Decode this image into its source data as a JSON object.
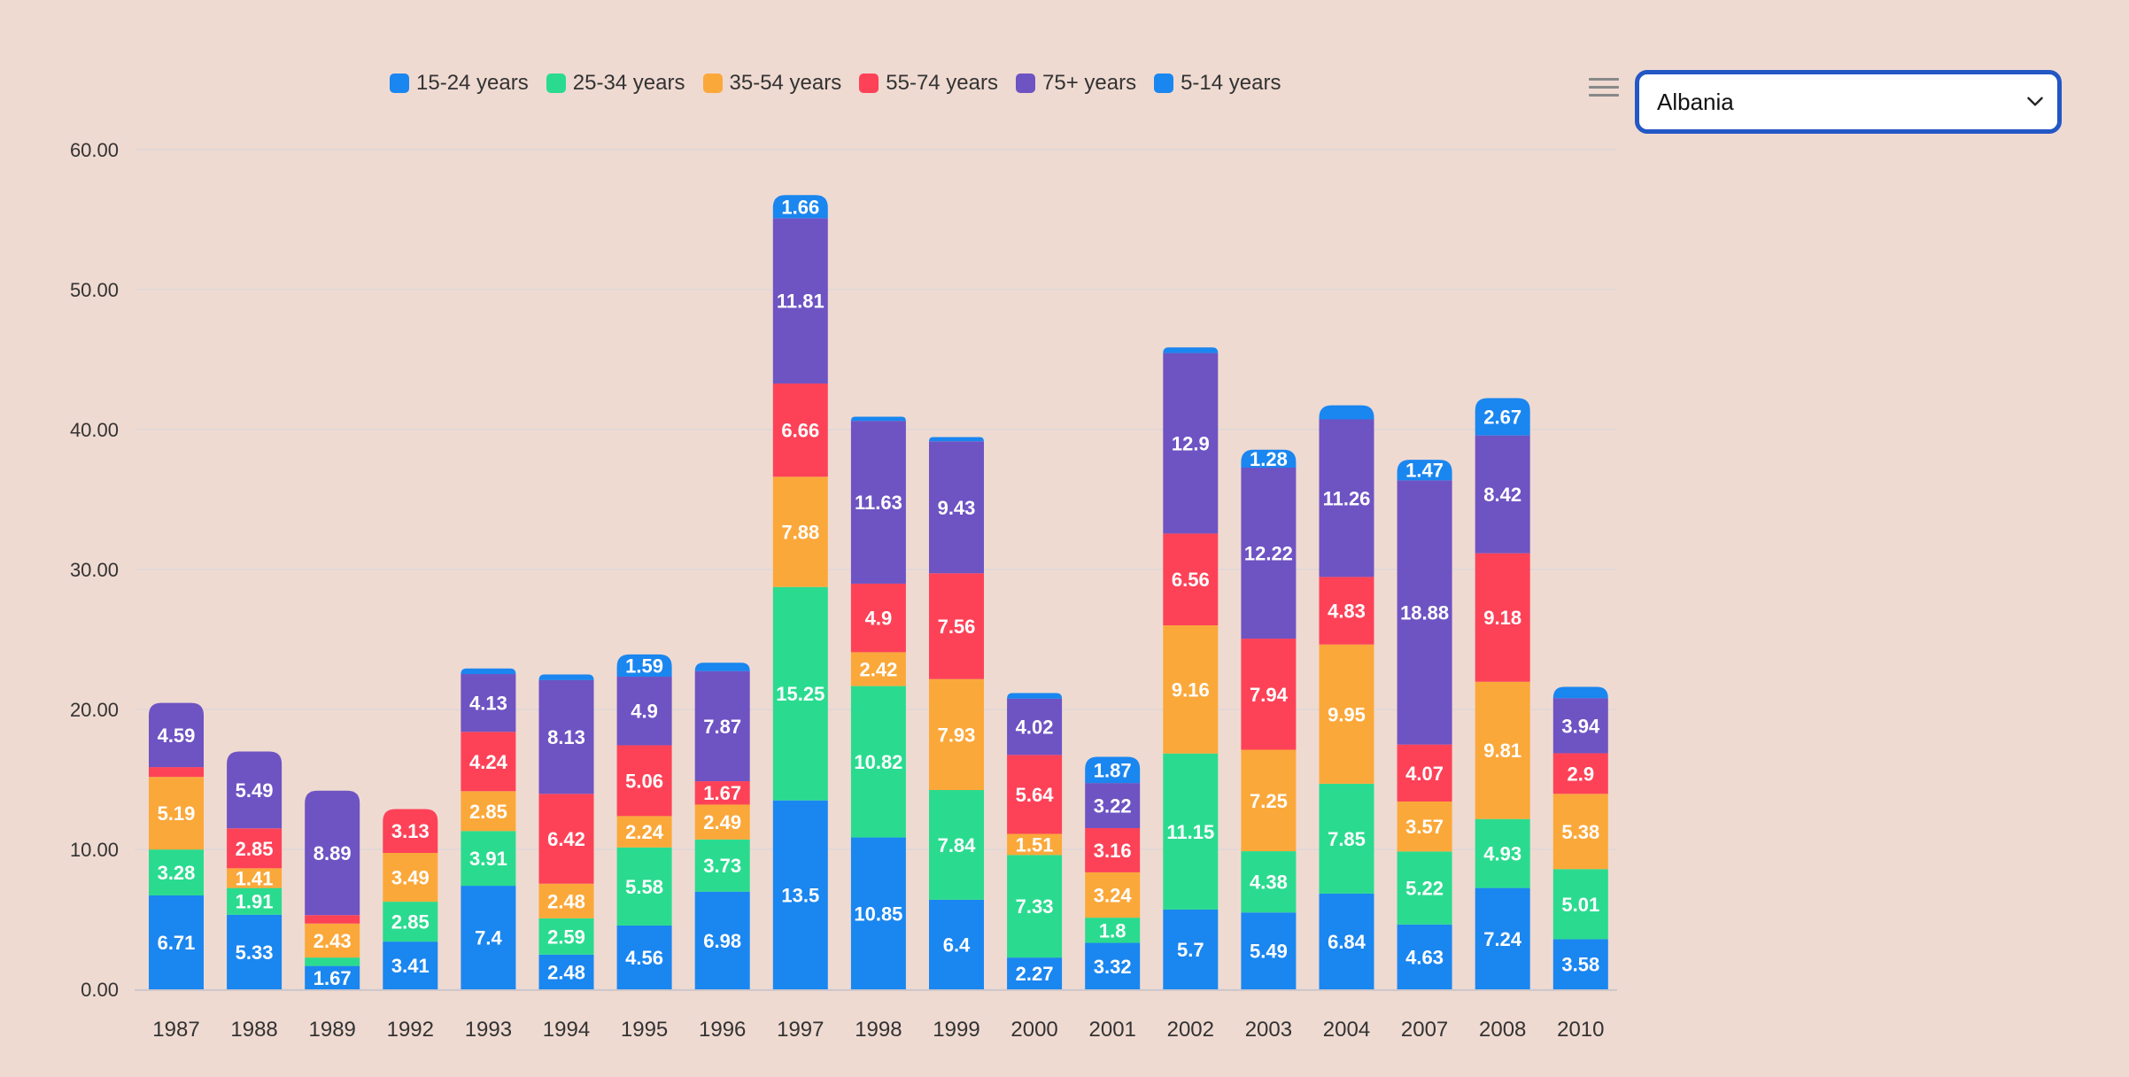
{
  "legend": [
    {
      "label": "15-24 years",
      "color": "#1a86f0"
    },
    {
      "label": "25-34 years",
      "color": "#2adb8f"
    },
    {
      "label": "35-54 years",
      "color": "#fba83a"
    },
    {
      "label": "55-74 years",
      "color": "#fd4258"
    },
    {
      "label": "75+ years",
      "color": "#6e53c3"
    },
    {
      "label": "5-14 years",
      "color": "#1a86f0"
    }
  ],
  "country_select": {
    "selected": "Albania"
  },
  "menu": {
    "icon": "hamburger-menu-icon"
  },
  "chart_data": {
    "type": "bar",
    "stacked": true,
    "categories": [
      "1987",
      "1988",
      "1989",
      "1992",
      "1993",
      "1994",
      "1995",
      "1996",
      "1997",
      "1998",
      "1999",
      "2000",
      "2001",
      "2002",
      "2003",
      "2004",
      "2007",
      "2008",
      "2010"
    ],
    "ylim": [
      0,
      60
    ],
    "yticks": [
      "0.00",
      "10.00",
      "20.00",
      "30.00",
      "40.00",
      "50.00",
      "60.00"
    ],
    "grid": true,
    "legend_position": "top",
    "series": [
      {
        "name": "15-24 years",
        "color": "#1a86f0",
        "values": [
          6.71,
          5.33,
          1.67,
          3.41,
          7.4,
          2.48,
          4.56,
          6.98,
          13.5,
          10.85,
          6.4,
          2.27,
          3.32,
          5.7,
          5.49,
          6.84,
          4.63,
          7.24,
          3.58
        ],
        "labels": [
          "6.71",
          "5.33",
          "1.67",
          "3.41",
          "7.4",
          "2.48",
          "4.56",
          "6.98",
          "13.5",
          "10.85",
          "6.4",
          "2.27",
          "3.32",
          "5.7",
          "5.49",
          "6.84",
          "4.63",
          "7.24",
          "3.58"
        ]
      },
      {
        "name": "25-34 years",
        "color": "#2adb8f",
        "values": [
          3.28,
          1.91,
          0.6,
          2.85,
          3.91,
          2.59,
          5.58,
          3.73,
          15.25,
          10.82,
          7.84,
          7.33,
          1.8,
          11.15,
          4.38,
          7.85,
          5.22,
          4.93,
          5.01
        ],
        "labels": [
          "3.28",
          "1.91",
          "",
          "2.85",
          "3.91",
          "2.59",
          "5.58",
          "3.73",
          "15.25",
          "10.82",
          "7.84",
          "7.33",
          "1.8",
          "11.15",
          "4.38",
          "7.85",
          "5.22",
          "4.93",
          "5.01"
        ]
      },
      {
        "name": "35-54 years",
        "color": "#fba83a",
        "values": [
          5.19,
          1.41,
          2.43,
          3.49,
          2.85,
          2.48,
          2.24,
          2.49,
          7.88,
          2.42,
          7.93,
          1.51,
          3.24,
          9.16,
          7.25,
          9.95,
          3.57,
          9.81,
          5.38
        ],
        "labels": [
          "5.19",
          "1.41",
          "2.43",
          "3.49",
          "2.85",
          "2.48",
          "2.24",
          "2.49",
          "7.88",
          "2.42",
          "7.93",
          "1.51",
          "3.24",
          "9.16",
          "7.25",
          "9.95",
          "3.57",
          "9.81",
          "5.38"
        ]
      },
      {
        "name": "55-74 years",
        "color": "#fd4258",
        "values": [
          0.7,
          2.85,
          0.6,
          3.13,
          4.24,
          6.42,
          5.06,
          1.67,
          6.66,
          4.9,
          7.56,
          5.64,
          3.16,
          6.56,
          7.94,
          4.83,
          4.07,
          9.18,
          2.9
        ],
        "labels": [
          "",
          "2.85",
          "",
          "3.13",
          "4.24",
          "6.42",
          "5.06",
          "1.67",
          "6.66",
          "4.9",
          "7.56",
          "5.64",
          "3.16",
          "6.56",
          "7.94",
          "4.83",
          "4.07",
          "9.18",
          "2.9"
        ]
      },
      {
        "name": "75+ years",
        "color": "#6e53c3",
        "values": [
          4.59,
          5.49,
          8.89,
          0,
          4.13,
          8.13,
          4.9,
          7.87,
          11.81,
          11.63,
          9.43,
          4.02,
          3.22,
          12.9,
          12.22,
          11.26,
          18.88,
          8.42,
          3.94
        ],
        "labels": [
          "4.59",
          "5.49",
          "8.89",
          "",
          "4.13",
          "8.13",
          "4.9",
          "7.87",
          "11.81",
          "11.63",
          "9.43",
          "4.02",
          "3.22",
          "12.9",
          "12.22",
          "11.26",
          "18.88",
          "8.42",
          "3.94"
        ]
      },
      {
        "name": "5-14 years",
        "color": "#1a86f0",
        "values": [
          0,
          0,
          0,
          0,
          0.4,
          0.4,
          1.59,
          0.6,
          1.66,
          0.3,
          0.3,
          0.4,
          1.87,
          0.4,
          1.28,
          1.0,
          1.47,
          2.67,
          0.8
        ],
        "labels": [
          "",
          "",
          "",
          "",
          "",
          "",
          "1.59",
          "",
          "1.66",
          "",
          "",
          "",
          "1.87",
          "",
          "1.28",
          "",
          "1.47",
          "2.67",
          ""
        ]
      }
    ]
  }
}
